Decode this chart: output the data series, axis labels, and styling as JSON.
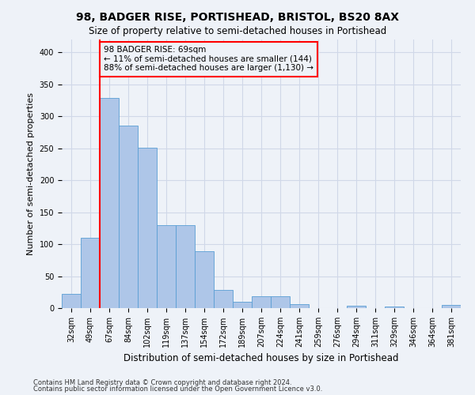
{
  "title": "98, BADGER RISE, PORTISHEAD, BRISTOL, BS20 8AX",
  "subtitle": "Size of property relative to semi-detached houses in Portishead",
  "xlabel": "Distribution of semi-detached houses by size in Portishead",
  "ylabel": "Number of semi-detached properties",
  "footnote1": "Contains HM Land Registry data © Crown copyright and database right 2024.",
  "footnote2": "Contains public sector information licensed under the Open Government Licence v3.0.",
  "bin_labels": [
    "32sqm",
    "49sqm",
    "67sqm",
    "84sqm",
    "102sqm",
    "119sqm",
    "137sqm",
    "154sqm",
    "172sqm",
    "189sqm",
    "207sqm",
    "224sqm",
    "241sqm",
    "259sqm",
    "276sqm",
    "294sqm",
    "311sqm",
    "329sqm",
    "346sqm",
    "364sqm",
    "381sqm"
  ],
  "bar_values": [
    22,
    110,
    328,
    285,
    251,
    130,
    130,
    89,
    28,
    10,
    19,
    19,
    6,
    0,
    0,
    4,
    0,
    2,
    0,
    0,
    5
  ],
  "bar_color": "#aec6e8",
  "bar_edge_color": "#5a9fd4",
  "vline_x_index": 1.5,
  "vline_color": "red",
  "property_size": "69sqm",
  "pct_smaller": 11,
  "count_smaller": 144,
  "pct_larger": 88,
  "count_larger": 1130,
  "annotation_box_color": "red",
  "ylim": [
    0,
    420
  ],
  "yticks": [
    0,
    50,
    100,
    150,
    200,
    250,
    300,
    350,
    400
  ],
  "grid_color": "#d0d8e8",
  "bg_color": "#eef2f8",
  "title_fontsize": 10,
  "subtitle_fontsize": 8.5,
  "annotation_fontsize": 7.5,
  "ylabel_fontsize": 8,
  "xlabel_fontsize": 8.5,
  "tick_fontsize": 7,
  "footnote_fontsize": 6
}
